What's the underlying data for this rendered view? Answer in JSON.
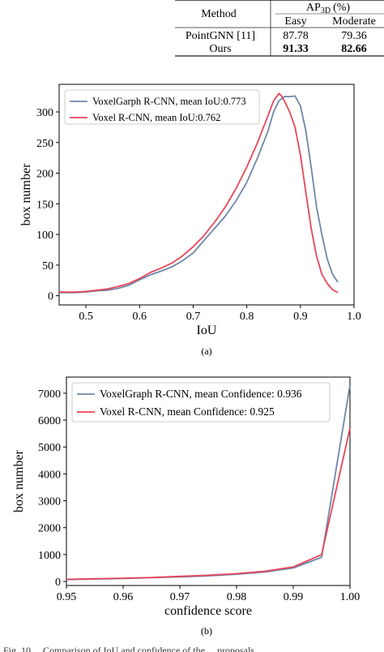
{
  "table": {
    "col_method": "Method",
    "col_ap_main": "AP",
    "col_ap_sub": "3D",
    "col_ap_unit": "(%)",
    "col_easy": "Easy",
    "col_moderate": "Moderate",
    "rows": [
      {
        "method": "PointGNN [11]",
        "easy": "87.78",
        "moderate": "79.36",
        "bold": false
      },
      {
        "method": "Ours",
        "easy": "91.33",
        "moderate": "82.66",
        "bold": true
      }
    ]
  },
  "figure_a_caption": "(a)",
  "figure_b_caption": "(b)",
  "footer_fragment": "Fig. 10 ... Comparison of IoU and confidence of the ... proposals",
  "colors": {
    "voxelgraph": "#6e87a8",
    "voxel": "#e8455a"
  },
  "chart_data": [
    {
      "type": "line",
      "xlabel": "IoU",
      "ylabel": "box number",
      "xlim": [
        0.45,
        1.0
      ],
      "ylim": [
        -15,
        345
      ],
      "xticks": [
        0.5,
        0.6,
        0.7,
        0.8,
        0.9,
        1.0
      ],
      "xtick_labels": [
        "0.5",
        "0.6",
        "0.7",
        "0.8",
        "0.9",
        "1.0"
      ],
      "yticks": [
        0,
        50,
        100,
        150,
        200,
        250,
        300
      ],
      "ytick_labels": [
        "0",
        "50",
        "100",
        "150",
        "200",
        "250",
        "300"
      ],
      "legend": "top-left",
      "series": [
        {
          "name": "VoxelGarph R-CNN, mean IoU:0.773",
          "color": "#6e87a8",
          "x": [
            0.45,
            0.48,
            0.5,
            0.52,
            0.54,
            0.56,
            0.58,
            0.6,
            0.62,
            0.64,
            0.66,
            0.68,
            0.7,
            0.72,
            0.74,
            0.76,
            0.78,
            0.8,
            0.82,
            0.84,
            0.85,
            0.86,
            0.87,
            0.88,
            0.89,
            0.9,
            0.91,
            0.92,
            0.93,
            0.94,
            0.95,
            0.96,
            0.97
          ],
          "y": [
            5,
            5,
            6,
            8,
            9,
            12,
            17,
            26,
            34,
            40,
            47,
            57,
            70,
            90,
            110,
            130,
            155,
            185,
            225,
            270,
            300,
            318,
            325,
            325,
            326,
            310,
            270,
            210,
            145,
            100,
            60,
            35,
            22
          ]
        },
        {
          "name": "Voxel R-CNN, mean IoU:0.762",
          "color": "#e8455a",
          "x": [
            0.45,
            0.48,
            0.5,
            0.52,
            0.54,
            0.56,
            0.58,
            0.6,
            0.62,
            0.64,
            0.66,
            0.68,
            0.7,
            0.72,
            0.74,
            0.76,
            0.78,
            0.8,
            0.82,
            0.84,
            0.85,
            0.86,
            0.865,
            0.87,
            0.88,
            0.89,
            0.9,
            0.91,
            0.92,
            0.93,
            0.94,
            0.95,
            0.96,
            0.97
          ],
          "y": [
            6,
            6,
            7,
            9,
            11,
            15,
            20,
            28,
            38,
            45,
            53,
            65,
            80,
            98,
            120,
            145,
            175,
            210,
            250,
            295,
            318,
            330,
            326,
            318,
            300,
            275,
            230,
            170,
            110,
            65,
            35,
            20,
            10,
            5
          ]
        }
      ]
    },
    {
      "type": "line",
      "xlabel": "confidence score",
      "ylabel": "box number",
      "xlim": [
        0.95,
        1.0
      ],
      "ylim": [
        -150,
        7600
      ],
      "xticks": [
        0.95,
        0.96,
        0.97,
        0.98,
        0.99,
        1.0
      ],
      "xtick_labels": [
        "0.95",
        "0.96",
        "0.97",
        "0.98",
        "0.99",
        "1.00"
      ],
      "yticks": [
        0,
        1000,
        2000,
        3000,
        4000,
        5000,
        6000,
        7000
      ],
      "ytick_labels": [
        "0",
        "1000",
        "2000",
        "3000",
        "4000",
        "5000",
        "6000",
        "7000"
      ],
      "legend": "top-left",
      "series": [
        {
          "name": "VoxelGraph R-CNN, mean Confidence: 0.936",
          "color": "#6e87a8",
          "x": [
            0.95,
            0.955,
            0.96,
            0.965,
            0.97,
            0.975,
            0.98,
            0.985,
            0.99,
            0.995,
            1.0
          ],
          "y": [
            70,
            90,
            110,
            140,
            170,
            210,
            270,
            350,
            500,
            900,
            7300
          ]
        },
        {
          "name": "Voxel R-CNN, mean Confidence: 0.925",
          "color": "#e8455a",
          "x": [
            0.95,
            0.955,
            0.96,
            0.965,
            0.97,
            0.975,
            0.98,
            0.985,
            0.99,
            0.995,
            1.0
          ],
          "y": [
            80,
            100,
            120,
            150,
            190,
            230,
            290,
            380,
            540,
            1000,
            5700
          ]
        }
      ]
    }
  ]
}
